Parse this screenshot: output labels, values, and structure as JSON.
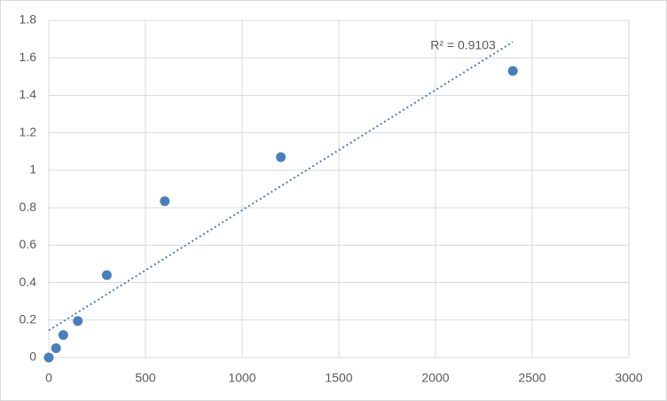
{
  "chart_data": {
    "type": "scatter",
    "x": [
      0,
      37.5,
      75,
      150,
      300,
      600,
      1200,
      2400
    ],
    "values": [
      0,
      0.05,
      0.12,
      0.195,
      0.44,
      0.835,
      1.07,
      1.53
    ],
    "color": "#4a7ebb",
    "xlim": [
      0,
      3000
    ],
    "xticks": [
      0,
      500,
      1000,
      1500,
      2000,
      2500,
      3000
    ],
    "ylim": [
      0,
      1.8
    ],
    "yticks": [
      0,
      0.2,
      0.4,
      0.6,
      0.8,
      1,
      1.2,
      1.4,
      1.6,
      1.8
    ],
    "grid": true,
    "trendline": {
      "x": [
        0,
        2400
      ],
      "y": [
        0.145,
        1.685
      ]
    },
    "annotation": "R² = 0.9103"
  }
}
